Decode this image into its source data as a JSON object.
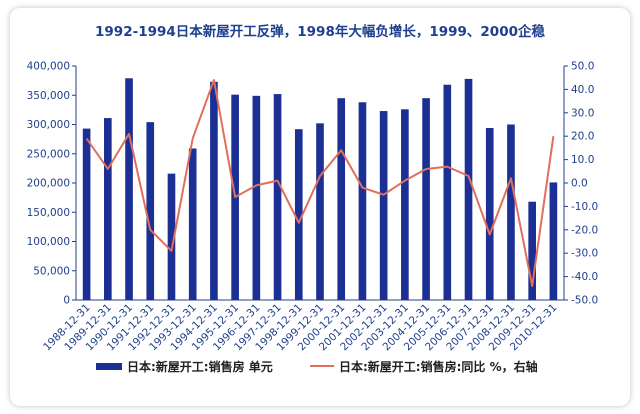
{
  "chart_data": {
    "type": "bar+line",
    "title": "1992-1994日本新屋开工反弹，1998年大幅负增长，1999、2000企稳",
    "categories": [
      "1988-12-31",
      "1989-12-31",
      "1990-12-31",
      "1991-12-31",
      "1992-12-31",
      "1993-12-31",
      "1994-12-31",
      "1995-12-31",
      "1996-12-31",
      "1997-12-31",
      "1998-12-31",
      "1999-12-31",
      "2000-12-31",
      "2001-12-31",
      "2002-12-31",
      "2003-12-31",
      "2004-12-31",
      "2005-12-31",
      "2006-12-31",
      "2007-12-31",
      "2008-12-31",
      "2009-12-31",
      "2010-12-31"
    ],
    "series": [
      {
        "name": "日本:新屋开工:销售房 单元",
        "type": "bar",
        "axis": "left",
        "color": "#1b2f94",
        "values": [
          293000,
          311000,
          379000,
          304000,
          216000,
          259000,
          373000,
          351000,
          349000,
          352000,
          292000,
          302000,
          345000,
          338000,
          323000,
          326000,
          345000,
          368000,
          378000,
          294000,
          300000,
          168000,
          201000
        ]
      },
      {
        "name": "日本:新屋开工:销售房:同比 %，右轴",
        "type": "line",
        "axis": "right",
        "color": "#e06f5c",
        "values": [
          19,
          6,
          21,
          -20,
          -29,
          19,
          44,
          -6,
          -1,
          1,
          -17,
          3,
          14,
          -2,
          -5,
          1,
          6,
          7,
          3,
          -22,
          2,
          -44,
          20
        ]
      }
    ],
    "y_left": {
      "ylim": [
        0,
        400000
      ],
      "ticks": [
        "0",
        "50,000",
        "100,000",
        "150,000",
        "200,000",
        "250,000",
        "300,000",
        "350,000",
        "400,000"
      ]
    },
    "y_right": {
      "ylim": [
        -50,
        50
      ],
      "ticks": [
        "-50.0",
        "-40.0",
        "-30.0",
        "-20.0",
        "-10.0",
        "0.0",
        "10.0",
        "20.0",
        "30.0",
        "40.0",
        "50.0"
      ]
    },
    "grid": false,
    "legend_position": "bottom"
  }
}
